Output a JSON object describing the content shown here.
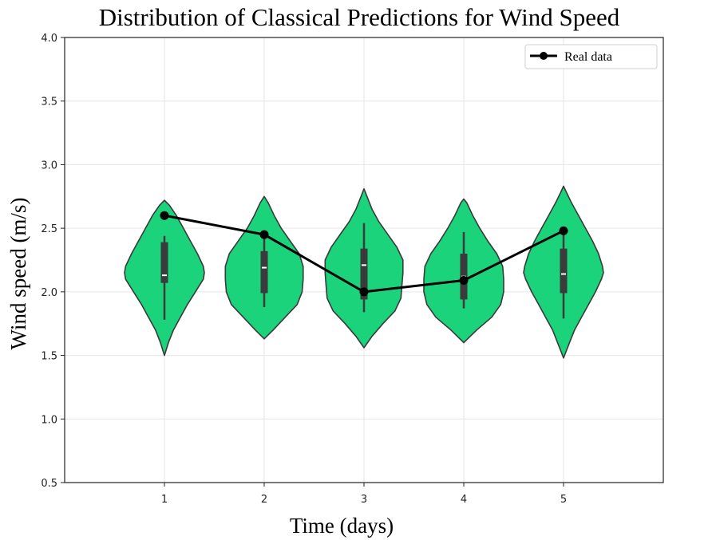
{
  "colors": {
    "violin_fill": "#1ad37b",
    "violin_edge": "#3a3a3a",
    "box": "#3b3b3b",
    "median": "#ffffff",
    "line": "#000000",
    "grid": "#e6e6e6"
  },
  "chart_data": {
    "type": "violin",
    "title": "Distribution of Classical Predictions for Wind Speed",
    "xlabel": "Time (days)",
    "ylabel": "Wind speed (m/s)",
    "x_ticks": [
      "1",
      "2",
      "3",
      "4",
      "5"
    ],
    "y_ticks": [
      "0.5",
      "1.0",
      "1.5",
      "2.0",
      "2.5",
      "3.0",
      "3.5",
      "4.0"
    ],
    "xlim": [
      0,
      6
    ],
    "ylim": [
      0.5,
      4.0
    ],
    "grid": true,
    "legend": {
      "placement": "top-right",
      "entries": [
        "Real data"
      ]
    },
    "violins": [
      {
        "x": 1,
        "min": 1.5,
        "max": 2.72,
        "q1": 2.07,
        "median": 2.13,
        "q3": 2.39,
        "whisker_low": 1.78,
        "whisker_high": 2.44,
        "shape": [
          [
            1.5,
            0.0
          ],
          [
            1.6,
            0.04
          ],
          [
            1.7,
            0.09
          ],
          [
            1.8,
            0.16
          ],
          [
            1.9,
            0.23
          ],
          [
            2.0,
            0.31
          ],
          [
            2.1,
            0.39
          ],
          [
            2.15,
            0.4
          ],
          [
            2.2,
            0.39
          ],
          [
            2.3,
            0.33
          ],
          [
            2.4,
            0.26
          ],
          [
            2.5,
            0.19
          ],
          [
            2.6,
            0.12
          ],
          [
            2.68,
            0.05
          ],
          [
            2.72,
            0.0
          ]
        ]
      },
      {
        "x": 2,
        "min": 1.63,
        "max": 2.75,
        "q1": 1.99,
        "median": 2.19,
        "q3": 2.32,
        "whisker_low": 1.88,
        "whisker_high": 2.45,
        "shape": [
          [
            1.63,
            0.0
          ],
          [
            1.7,
            0.09
          ],
          [
            1.8,
            0.21
          ],
          [
            1.9,
            0.33
          ],
          [
            2.0,
            0.38
          ],
          [
            2.1,
            0.39
          ],
          [
            2.2,
            0.39
          ],
          [
            2.3,
            0.35
          ],
          [
            2.4,
            0.26
          ],
          [
            2.5,
            0.17
          ],
          [
            2.6,
            0.1
          ],
          [
            2.7,
            0.04
          ],
          [
            2.75,
            0.0
          ]
        ]
      },
      {
        "x": 3,
        "min": 1.56,
        "max": 2.81,
        "q1": 1.94,
        "median": 2.21,
        "q3": 2.34,
        "whisker_low": 1.84,
        "whisker_high": 2.54,
        "shape": [
          [
            1.56,
            0.0
          ],
          [
            1.65,
            0.08
          ],
          [
            1.75,
            0.19
          ],
          [
            1.85,
            0.31
          ],
          [
            1.95,
            0.37
          ],
          [
            2.05,
            0.38
          ],
          [
            2.15,
            0.39
          ],
          [
            2.25,
            0.39
          ],
          [
            2.35,
            0.33
          ],
          [
            2.45,
            0.24
          ],
          [
            2.55,
            0.15
          ],
          [
            2.65,
            0.08
          ],
          [
            2.75,
            0.03
          ],
          [
            2.81,
            0.0
          ]
        ]
      },
      {
        "x": 4,
        "min": 1.6,
        "max": 2.73,
        "q1": 1.94,
        "median": 2.12,
        "q3": 2.3,
        "whisker_low": 1.87,
        "whisker_high": 2.47,
        "shape": [
          [
            1.6,
            0.0
          ],
          [
            1.7,
            0.13
          ],
          [
            1.8,
            0.28
          ],
          [
            1.9,
            0.37
          ],
          [
            2.0,
            0.4
          ],
          [
            2.1,
            0.4
          ],
          [
            2.2,
            0.39
          ],
          [
            2.3,
            0.33
          ],
          [
            2.4,
            0.24
          ],
          [
            2.5,
            0.16
          ],
          [
            2.6,
            0.09
          ],
          [
            2.7,
            0.03
          ],
          [
            2.73,
            0.0
          ]
        ]
      },
      {
        "x": 5,
        "min": 1.48,
        "max": 2.83,
        "q1": 1.99,
        "median": 2.14,
        "q3": 2.34,
        "whisker_low": 1.79,
        "whisker_high": 2.48,
        "shape": [
          [
            1.48,
            0.0
          ],
          [
            1.6,
            0.06
          ],
          [
            1.7,
            0.11
          ],
          [
            1.8,
            0.18
          ],
          [
            1.9,
            0.25
          ],
          [
            2.0,
            0.32
          ],
          [
            2.1,
            0.38
          ],
          [
            2.15,
            0.4
          ],
          [
            2.2,
            0.39
          ],
          [
            2.3,
            0.35
          ],
          [
            2.4,
            0.29
          ],
          [
            2.5,
            0.22
          ],
          [
            2.6,
            0.15
          ],
          [
            2.7,
            0.08
          ],
          [
            2.78,
            0.03
          ],
          [
            2.83,
            0.0
          ]
        ]
      }
    ],
    "series": [
      {
        "name": "Real data",
        "x": [
          1,
          2,
          3,
          4,
          5
        ],
        "values": [
          2.6,
          2.45,
          2.0,
          2.09,
          2.48
        ]
      }
    ]
  }
}
